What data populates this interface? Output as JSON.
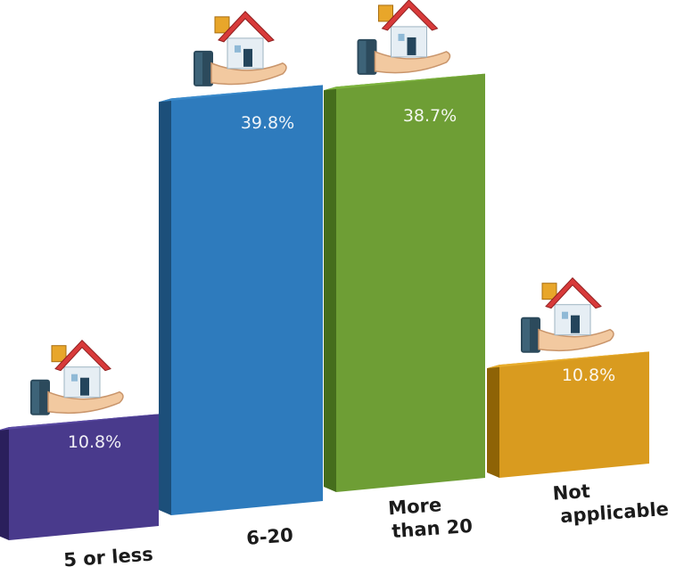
{
  "chart_data": {
    "type": "bar",
    "categories": [
      "5 or less",
      "6-20",
      "More than 20",
      "Not applicable"
    ],
    "values": [
      10.8,
      39.8,
      38.7,
      10.8
    ],
    "data_labels": [
      "10.8%",
      "39.8%",
      "38.7%",
      "10.8%"
    ],
    "title": "",
    "xlabel": "",
    "ylabel": "",
    "ylim": [
      0,
      40
    ],
    "grid": false,
    "legend": "none",
    "bar_style": "3d-box",
    "marker_icon": "house-in-hand-icon",
    "colors": {
      "front": [
        "#493a8c",
        "#2e7bbd",
        "#6e9e35",
        "#d99b1f"
      ],
      "top": [
        "#5a4aa3",
        "#3a8acb",
        "#7db43e",
        "#e8ad2c"
      ],
      "side": [
        "#2a1f5c",
        "#1c4f7a",
        "#456d1c",
        "#8e6306"
      ]
    }
  }
}
